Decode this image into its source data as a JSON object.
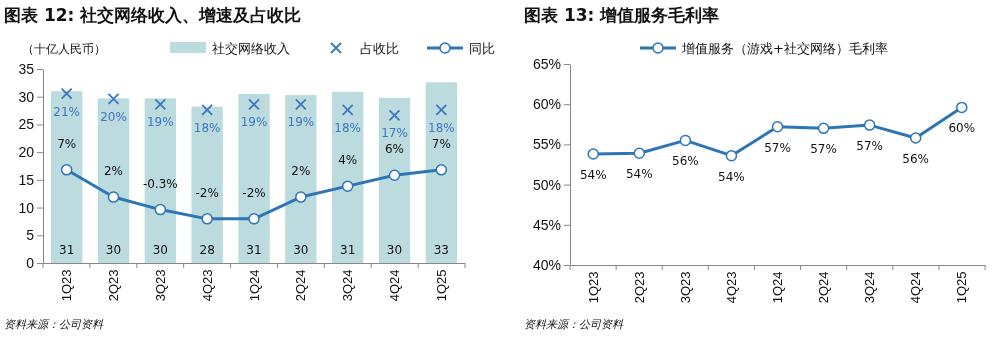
{
  "chart_data": [
    {
      "type": "bar",
      "title": "图表 12: 社交网络收入、增速及占收比",
      "ylabel": "（十亿人民币）",
      "categories": [
        "1Q23",
        "2Q23",
        "3Q23",
        "4Q23",
        "1Q24",
        "2Q24",
        "3Q24",
        "4Q24",
        "1Q25"
      ],
      "series": [
        {
          "name": "社交网络收入",
          "color": "#bcdbdf",
          "values": [
            31,
            29.7,
            29.7,
            28.2,
            30.5,
            30.3,
            30.9,
            29.8,
            32.6
          ],
          "value_labels": [
            "31",
            "30",
            "30",
            "28",
            "31",
            "30",
            "31",
            "30",
            "33"
          ]
        },
        {
          "name": "占收比",
          "type": "scatter",
          "axis": "y2",
          "marker": "cross",
          "color": "#3b78c0",
          "values": [
            21,
            20,
            19,
            18,
            19,
            19,
            18,
            17,
            18
          ],
          "value_labels": [
            "21%",
            "20%",
            "19%",
            "18%",
            "19%",
            "19%",
            "18%",
            "17%",
            "18%"
          ]
        },
        {
          "name": "同比",
          "type": "line",
          "axis": "y2",
          "marker": "circle",
          "color": "#2e75b6",
          "values": [
            7,
            2,
            -0.3,
            -2,
            -2,
            2,
            4,
            6,
            7
          ],
          "value_labels": [
            "7%",
            "2%",
            "-0.3%",
            "-2%",
            "-2%",
            "2%",
            "4%",
            "6%",
            "7%"
          ]
        }
      ],
      "ylim": [
        0,
        35
      ],
      "yticks": [
        0,
        5,
        10,
        15,
        20,
        25,
        30,
        35
      ],
      "y2lim": [
        -10.1,
        25.5
      ],
      "grid": false,
      "legend": "top",
      "annotations": [
        "资料来源：公司资料"
      ]
    },
    {
      "type": "line",
      "title": "图表 13: 增值服务毛利率",
      "categories": [
        "1Q23",
        "2Q23",
        "3Q23",
        "4Q23",
        "1Q24",
        "2Q24",
        "3Q24",
        "4Q24",
        "1Q25"
      ],
      "series": [
        {
          "name": "增值服务（游戏+社交网络）毛利率",
          "marker": "circle",
          "color": "#2e75b6",
          "values": [
            53.8,
            53.9,
            55.5,
            53.6,
            57.2,
            57.0,
            57.4,
            55.8,
            59.6
          ],
          "value_labels": [
            "54%",
            "54%",
            "56%",
            "54%",
            "57%",
            "57%",
            "57%",
            "56%",
            "60%"
          ]
        }
      ],
      "ylim": [
        40,
        65
      ],
      "yticks": [
        {
          "value": 40,
          "label": "40%"
        },
        {
          "value": 45,
          "label": "45%"
        },
        {
          "value": 50,
          "label": "50%"
        },
        {
          "value": 55,
          "label": "55%"
        },
        {
          "value": 60,
          "label": "60%"
        },
        {
          "value": 65,
          "label": "65%"
        }
      ],
      "grid": false,
      "legend": "top",
      "annotations": [
        "资料来源：公司资料"
      ]
    }
  ]
}
